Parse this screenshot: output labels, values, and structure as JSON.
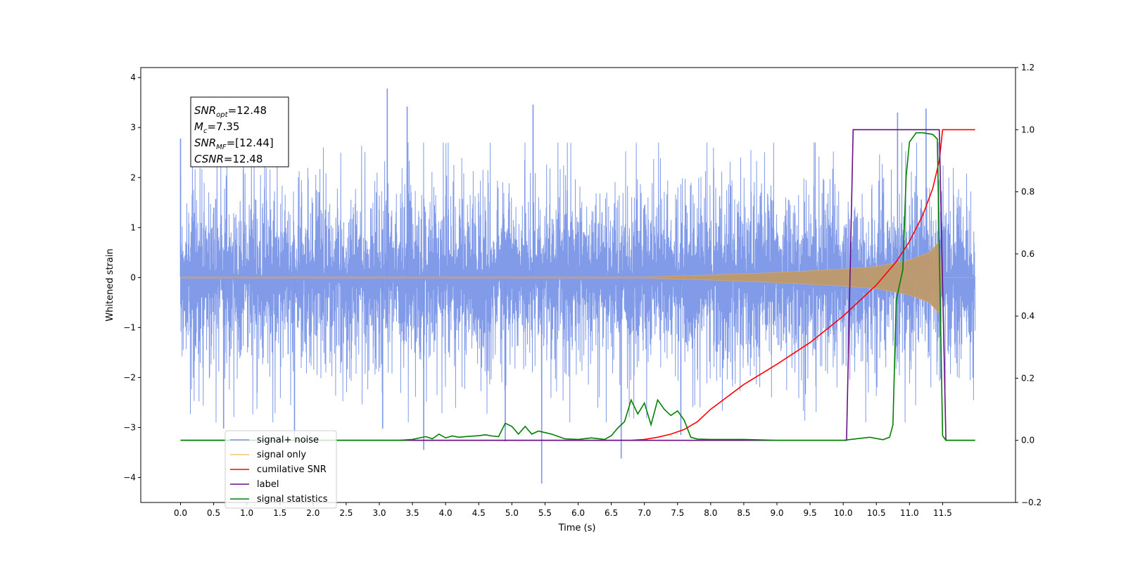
{
  "chart_data": {
    "type": "line",
    "xlabel": "Time (s)",
    "ylabel": "Whitened strain",
    "xlim": [
      -0.6,
      12.6
    ],
    "ylim_left": [
      -4.5,
      4.2
    ],
    "ylim_right": [
      -0.2,
      1.2
    ],
    "xticks": [
      "0.0",
      "0.5",
      "1.0",
      "1.5",
      "2.0",
      "2.5",
      "3.0",
      "3.5",
      "4.0",
      "4.5",
      "5.0",
      "5.5",
      "6.0",
      "6.5",
      "7.0",
      "7.5",
      "8.0",
      "8.5",
      "9.0",
      "9.5",
      "10.0",
      "10.5",
      "11.0",
      "11.5"
    ],
    "yticks_left": [
      -4,
      -3,
      -2,
      -1,
      0,
      1,
      2,
      3,
      4
    ],
    "yticks_left_labels": [
      "−4",
      "−3",
      "−2",
      "−1",
      "0",
      "1",
      "2",
      "3",
      "4"
    ],
    "yticks_right": [
      "−0.2",
      "0.0",
      "0.2",
      "0.4",
      "0.6",
      "0.8",
      "1.0",
      "1.2"
    ],
    "annotation": {
      "lines": [
        {
          "sym": "SNR",
          "sub": "opt",
          "val": "=12.48"
        },
        {
          "sym": "M",
          "sub": "c",
          "val": "=7.35"
        },
        {
          "sym": "SNR",
          "sub": "MF",
          "val": "=[12.44]"
        },
        {
          "sym": "CSNR",
          "sub": "",
          "val": "=12.48"
        }
      ]
    },
    "legend": {
      "placement": "lower-left",
      "entries": [
        {
          "label": "signal+ noise",
          "color": "#7b96e8"
        },
        {
          "label": "signal only",
          "color": "#f5c07a"
        },
        {
          "label": "cumilative SNR",
          "color": "#ff0000"
        },
        {
          "label": "label",
          "color": "#6a0f86"
        },
        {
          "label": "signal statistics",
          "color": "#008000"
        }
      ]
    },
    "series": [
      {
        "name": "signal+ noise",
        "axis": "left",
        "color": "#7b96e8",
        "x_range": [
          0,
          11.99
        ],
        "envelope_typical": 1.8,
        "spikes": [
          [
            0.0,
            2.78
          ],
          [
            3.12,
            3.78
          ],
          [
            3.42,
            3.42
          ],
          [
            5.32,
            3.46
          ],
          [
            10.82,
            3.3
          ],
          [
            11.25,
            3.38
          ],
          [
            5.45,
            -4.12
          ],
          [
            3.67,
            -3.45
          ],
          [
            6.65,
            -3.62
          ],
          [
            1.72,
            -3.3
          ],
          [
            3.05,
            -3.02
          ],
          [
            0.65,
            -3.02
          ],
          [
            4.9,
            -3.28
          ],
          [
            7.55,
            -3.15
          ]
        ]
      },
      {
        "name": "signal only",
        "axis": "left",
        "color": "#f5c07a",
        "amplitude": [
          [
            0,
            0.01
          ],
          [
            7.0,
            0.01
          ],
          [
            8.0,
            0.05
          ],
          [
            9.0,
            0.1
          ],
          [
            10.0,
            0.17
          ],
          [
            10.5,
            0.22
          ],
          [
            11.0,
            0.35
          ],
          [
            11.3,
            0.5
          ],
          [
            11.45,
            0.72
          ],
          [
            11.48,
            0.0
          ],
          [
            12.0,
            0.0
          ]
        ]
      },
      {
        "name": "cumilative SNR",
        "axis": "right",
        "color": "#ff0000",
        "x": [
          0,
          6.8,
          7.0,
          7.2,
          7.4,
          7.6,
          7.8,
          8.0,
          8.5,
          9.0,
          9.5,
          10.0,
          10.5,
          10.8,
          11.0,
          11.2,
          11.35,
          11.45,
          11.5,
          11.99
        ],
        "y": [
          0.0,
          0.0,
          0.003,
          0.01,
          0.02,
          0.035,
          0.06,
          0.1,
          0.18,
          0.245,
          0.315,
          0.4,
          0.5,
          0.575,
          0.64,
          0.725,
          0.81,
          0.9,
          1.0,
          1.0
        ]
      },
      {
        "name": "label",
        "axis": "right",
        "color": "#6a0f86",
        "x": [
          0,
          10.05,
          10.15,
          11.45,
          11.55,
          11.99
        ],
        "y": [
          0.0,
          0.0,
          1.0,
          1.0,
          0.0,
          0.0
        ]
      },
      {
        "name": "signal statistics",
        "axis": "right",
        "color": "#008000",
        "x": [
          0,
          3.3,
          3.5,
          3.7,
          3.8,
          3.9,
          4.0,
          4.1,
          4.2,
          4.3,
          4.5,
          4.6,
          4.7,
          4.8,
          4.9,
          5.0,
          5.1,
          5.2,
          5.3,
          5.4,
          5.5,
          5.6,
          5.8,
          6.0,
          6.2,
          6.4,
          6.5,
          6.6,
          6.7,
          6.8,
          6.9,
          7.0,
          7.1,
          7.2,
          7.3,
          7.4,
          7.5,
          7.6,
          7.7,
          7.8,
          8.0,
          8.5,
          9.0,
          10.0,
          10.4,
          10.6,
          10.7,
          10.75,
          10.8,
          10.9,
          10.95,
          11.0,
          11.1,
          11.2,
          11.35,
          11.42,
          11.5,
          11.55,
          11.99
        ],
        "y": [
          0.0,
          0.0,
          0.003,
          0.012,
          0.005,
          0.02,
          0.008,
          0.014,
          0.01,
          0.012,
          0.015,
          0.018,
          0.014,
          0.012,
          0.055,
          0.045,
          0.02,
          0.045,
          0.02,
          0.03,
          0.025,
          0.02,
          0.005,
          0.003,
          0.008,
          0.003,
          0.015,
          0.04,
          0.06,
          0.13,
          0.085,
          0.12,
          0.05,
          0.13,
          0.1,
          0.08,
          0.095,
          0.065,
          0.01,
          0.004,
          0.003,
          0.003,
          0.0,
          0.0,
          0.01,
          0.002,
          0.01,
          0.05,
          0.45,
          0.55,
          0.85,
          0.96,
          0.99,
          0.99,
          0.985,
          0.97,
          0.015,
          0.0,
          0.0
        ]
      }
    ]
  }
}
